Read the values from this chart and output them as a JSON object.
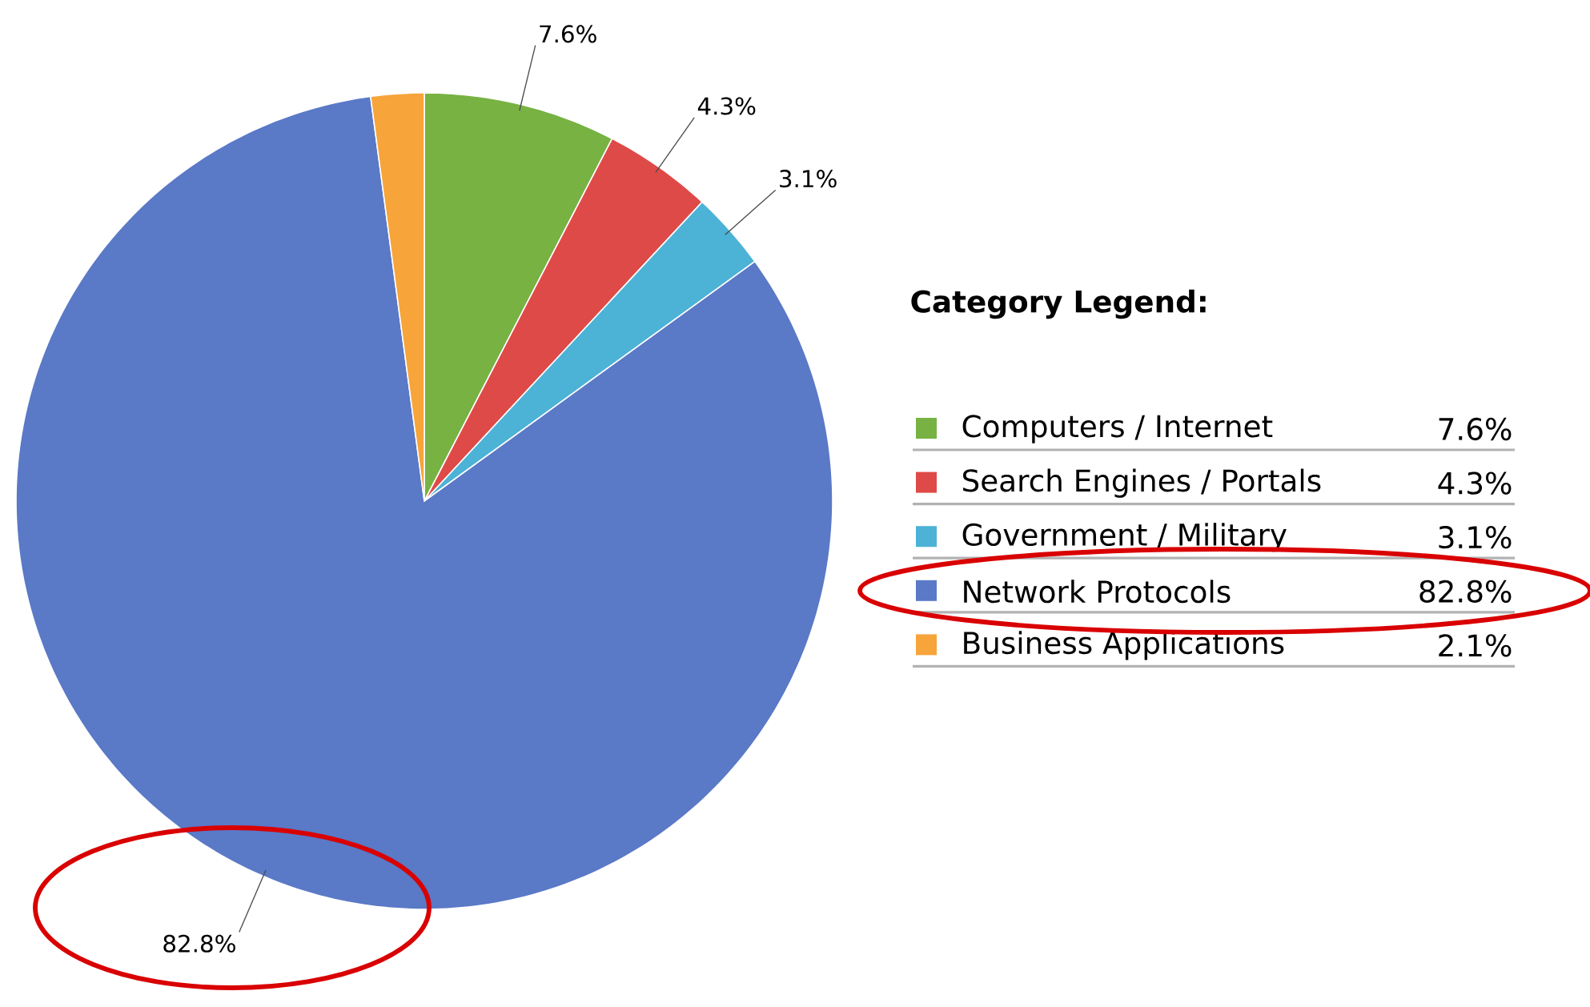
{
  "chart_data": {
    "type": "pie",
    "legend_title": "Category Legend:",
    "categories": [
      "Computers / Internet",
      "Search Engines / Portals",
      "Government / Military",
      "Network Protocols",
      "Business Applications"
    ],
    "values": [
      7.6,
      4.3,
      3.1,
      82.8,
      2.1
    ],
    "colors": [
      "#77b243",
      "#de4a47",
      "#4cb2d6",
      "#5a79c6",
      "#f7a43a"
    ],
    "value_labels": [
      "7.6%",
      "4.3%",
      "3.1%",
      "82.8%",
      "2.1%"
    ],
    "legend": "right"
  }
}
